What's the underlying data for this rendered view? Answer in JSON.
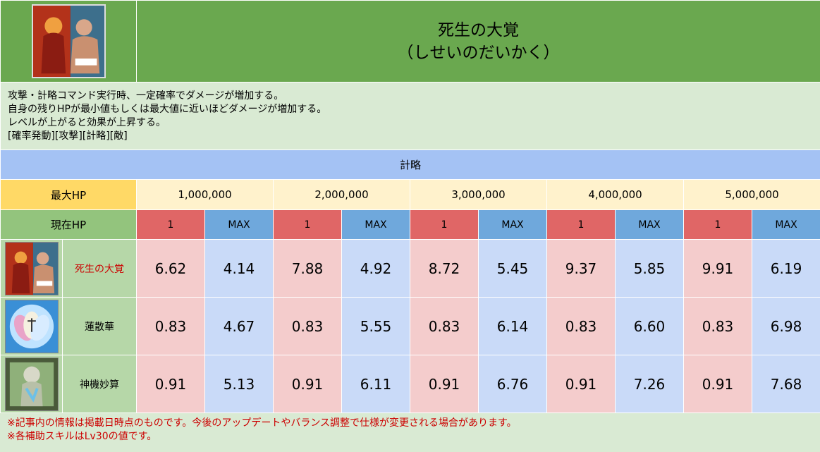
{
  "header": {
    "title": "死生の大覚",
    "reading": "（しせいのだいかく）",
    "icon": "samurai-wrestler-portrait-icon"
  },
  "description": {
    "lines": [
      "攻撃・計略コマンド実行時、一定確率でダメージが増加する。",
      "自身の残りHPが最小値もしくは最大値に近いほどダメージが増加する。",
      "レベルが上がると効果が上昇する。",
      "[確率発動][攻撃][計略][敵]"
    ]
  },
  "table": {
    "category": "計略",
    "max_hp_label": "最大HP",
    "max_hp_values": [
      "1,000,000",
      "2,000,000",
      "3,000,000",
      "4,000,000",
      "5,000,000"
    ],
    "current_hp_label": "現在HP",
    "current_hp_min": "1",
    "current_hp_max": "MAX",
    "skills": [
      {
        "name": "死生の大覚",
        "icon": "samurai-wrestler-icon",
        "highlight": true,
        "values": [
          "6.62",
          "4.14",
          "7.88",
          "4.92",
          "8.72",
          "5.45",
          "9.37",
          "5.85",
          "9.91",
          "6.19"
        ]
      },
      {
        "name": "蓮散華",
        "icon": "lotus-petals-icon",
        "highlight": false,
        "values": [
          "0.83",
          "4.67",
          "0.83",
          "5.55",
          "0.83",
          "6.14",
          "0.83",
          "6.60",
          "0.83",
          "6.98"
        ]
      },
      {
        "name": "神機妙算",
        "icon": "praying-hands-icon",
        "highlight": false,
        "values": [
          "0.91",
          "5.13",
          "0.91",
          "6.11",
          "0.91",
          "6.76",
          "0.91",
          "7.26",
          "0.91",
          "7.68"
        ]
      }
    ]
  },
  "footer": {
    "notes": [
      "※記事内の情報は掲載日時点のものです。今後のアップデートやバランス調整で仕様が変更される場合があります。",
      "※各補助スキルはLv30の値です。"
    ]
  },
  "colors": {
    "header_green": "#6aa84f",
    "category_blue": "#a4c2f4",
    "max_hp_yellow": "#ffd966",
    "min_red": "#e06666",
    "max_blue": "#6fa8dc",
    "highlight_text": "#cc0000"
  }
}
